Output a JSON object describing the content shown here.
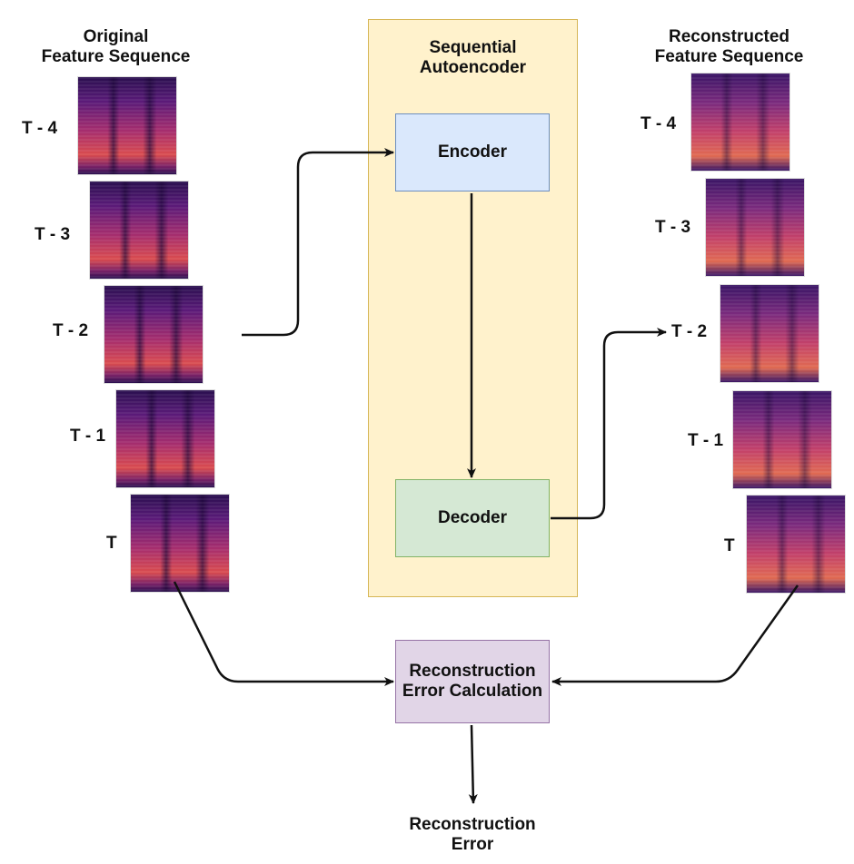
{
  "left_title_line1": "Original",
  "left_title_line2": "Feature Sequence",
  "right_title_line1": "Reconstructed",
  "right_title_line2": "Feature Sequence",
  "container_title_line1": "Sequential",
  "container_title_line2": "Autoencoder",
  "encoder_label": "Encoder",
  "decoder_label": "Decoder",
  "calc_label_line1": "Reconstruction",
  "calc_label_line2": "Error Calculation",
  "output_label_line1": "Reconstruction",
  "output_label_line2": "Error",
  "original_frames": [
    "T - 4",
    "T - 3",
    "T - 2",
    "T - 1",
    "T"
  ],
  "reconstructed_frames": [
    "T - 4",
    "T - 3",
    "T - 2",
    "T - 1",
    "T"
  ],
  "colors": {
    "container_fill": "#fff2cc",
    "container_border": "#d6b656",
    "encoder_fill": "#dae8fc",
    "encoder_border": "#6c8ebf",
    "decoder_fill": "#d5e8d4",
    "decoder_border": "#82b366",
    "calc_fill": "#e1d5e7",
    "calc_border": "#9673a6",
    "arrow": "#111111"
  }
}
